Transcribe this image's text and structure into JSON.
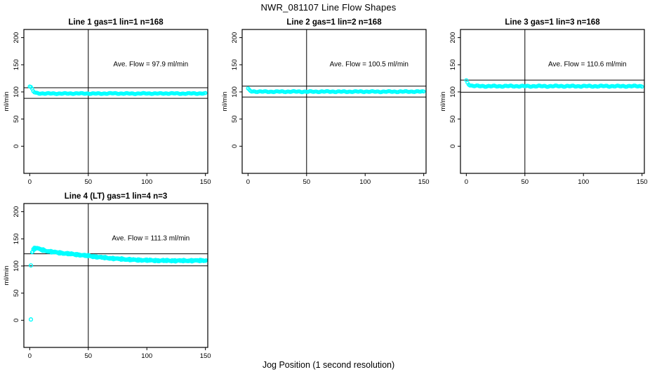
{
  "main_title": "NWR_081107  Line Flow Shapes",
  "x_axis_label": "Jog Position (1 second resolution)",
  "colors": {
    "points": "#00FFFF",
    "axis": "#000000",
    "background": "#FFFFFF"
  },
  "chart_data": [
    {
      "type": "scatter",
      "title": "Line 1 gas=1 lin=1 n=168",
      "annotation": "Ave. Flow =  97.9  ml/min",
      "avg_flow_ml_min": 97.9,
      "n": 168,
      "ylabel": "ml/min",
      "x_ticks": [
        0,
        50,
        100,
        150
      ],
      "y_ticks": [
        0,
        50,
        100,
        150,
        200
      ],
      "xlim": [
        -5,
        152
      ],
      "ylim": [
        -50,
        215
      ],
      "vline_x": 50,
      "hlines": [
        107.7,
        88.1
      ],
      "band": 0.9,
      "density": 1,
      "points": [
        [
          0,
          110
        ],
        [
          1,
          108.5
        ],
        [
          2,
          105.5
        ],
        [
          3,
          101.5
        ],
        [
          4,
          99.3
        ],
        [
          5,
          98.2
        ],
        [
          6,
          97.8
        ],
        [
          8,
          97.4
        ],
        [
          10,
          97.2
        ],
        [
          15,
          97
        ],
        [
          20,
          97.1
        ],
        [
          25,
          96.9
        ],
        [
          30,
          97
        ],
        [
          40,
          97.2
        ],
        [
          50,
          97
        ],
        [
          60,
          96.9
        ],
        [
          70,
          97.3
        ],
        [
          80,
          97
        ],
        [
          90,
          96.9
        ],
        [
          100,
          97.2
        ],
        [
          110,
          97
        ],
        [
          120,
          97.3
        ],
        [
          130,
          96.9
        ],
        [
          140,
          97.2
        ],
        [
          150,
          97.1
        ]
      ],
      "outliers": []
    },
    {
      "type": "scatter",
      "title": "Line 2 gas=1 lin=2 n=168",
      "annotation": "Ave. Flow =  100.5  ml/min",
      "avg_flow_ml_min": 100.5,
      "n": 168,
      "ylabel": "ml/min",
      "x_ticks": [
        0,
        50,
        100,
        150
      ],
      "y_ticks": [
        0,
        50,
        100,
        150,
        200
      ],
      "xlim": [
        -5,
        152
      ],
      "ylim": [
        -50,
        215
      ],
      "vline_x": 50,
      "hlines": [
        110.6,
        90.5
      ],
      "band": 1.0,
      "density": 1,
      "points": [
        [
          0,
          105.5
        ],
        [
          1,
          103.5
        ],
        [
          2,
          102
        ],
        [
          3,
          101.2
        ],
        [
          4,
          100.9
        ],
        [
          6,
          100.7
        ],
        [
          8,
          100.6
        ],
        [
          10,
          100.5
        ],
        [
          15,
          100.5
        ],
        [
          20,
          100.4
        ],
        [
          30,
          100.5
        ],
        [
          40,
          100.6
        ],
        [
          50,
          100.4
        ],
        [
          60,
          100.5
        ],
        [
          70,
          100.6
        ],
        [
          80,
          100.4
        ],
        [
          90,
          100.5
        ],
        [
          100,
          100.6
        ],
        [
          110,
          100.4
        ],
        [
          120,
          100.5
        ],
        [
          130,
          100.5
        ],
        [
          140,
          100.6
        ],
        [
          150,
          100.5
        ]
      ],
      "outliers": []
    },
    {
      "type": "scatter",
      "title": "Line 3 gas=1 lin=3 n=168",
      "annotation": "Ave. Flow =  110.6  ml/min",
      "avg_flow_ml_min": 110.6,
      "n": 168,
      "ylabel": "ml/min",
      "x_ticks": [
        0,
        50,
        100,
        150
      ],
      "y_ticks": [
        0,
        50,
        100,
        150,
        200
      ],
      "xlim": [
        -5,
        152
      ],
      "ylim": [
        -50,
        215
      ],
      "vline_x": 50,
      "hlines": [
        121.7,
        99.5
      ],
      "band": 1.2,
      "density": 1,
      "points": [
        [
          0,
          121
        ],
        [
          1,
          117.5
        ],
        [
          2,
          114.5
        ],
        [
          3,
          112.5
        ],
        [
          4,
          111.6
        ],
        [
          6,
          111.1
        ],
        [
          8,
          110.9
        ],
        [
          10,
          110.8
        ],
        [
          15,
          110.6
        ],
        [
          20,
          110.5
        ],
        [
          30,
          110.6
        ],
        [
          40,
          110.7
        ],
        [
          50,
          110.5
        ],
        [
          60,
          110.6
        ],
        [
          70,
          110.5
        ],
        [
          80,
          110.7
        ],
        [
          90,
          110.5
        ],
        [
          100,
          110.6
        ],
        [
          110,
          110.5
        ],
        [
          120,
          110.7
        ],
        [
          130,
          110.5
        ],
        [
          140,
          110.6
        ],
        [
          150,
          110.6
        ]
      ],
      "outliers": []
    },
    {
      "type": "scatter",
      "title": "Line 4 (LT) gas=1 lin=4 n=3",
      "annotation": "Ave. Flow =  111.3  ml/min",
      "avg_flow_ml_min": 111.3,
      "n": 3,
      "ylabel": "ml/min",
      "x_ticks": [
        0,
        50,
        100,
        150
      ],
      "y_ticks": [
        0,
        50,
        100,
        150,
        200
      ],
      "xlim": [
        -5,
        152
      ],
      "ylim": [
        -50,
        215
      ],
      "vline_x": 50,
      "hlines": [
        122.4,
        100.2
      ],
      "band": 1.5,
      "density": 2,
      "points": [
        [
          2,
          126
        ],
        [
          3,
          130.5
        ],
        [
          4,
          132.5
        ],
        [
          5,
          133
        ],
        [
          6,
          132.7
        ],
        [
          7,
          132
        ],
        [
          8,
          131.3
        ],
        [
          10,
          129.8
        ],
        [
          12,
          128.6
        ],
        [
          14,
          127.6
        ],
        [
          16,
          126.9
        ],
        [
          18,
          126.3
        ],
        [
          20,
          125.7
        ],
        [
          25,
          124.3
        ],
        [
          30,
          123.1
        ],
        [
          35,
          122.1
        ],
        [
          40,
          121
        ],
        [
          45,
          119.8
        ],
        [
          50,
          118.6
        ],
        [
          55,
          117.3
        ],
        [
          60,
          116
        ],
        [
          70,
          114
        ],
        [
          80,
          112.4
        ],
        [
          90,
          111.2
        ],
        [
          100,
          110.5
        ],
        [
          110,
          110
        ],
        [
          120,
          109.8
        ],
        [
          130,
          109.7
        ],
        [
          140,
          109.9
        ],
        [
          150,
          110.1
        ]
      ],
      "outliers": [
        [
          1,
          101
        ],
        [
          1,
          1.5
        ]
      ]
    }
  ]
}
